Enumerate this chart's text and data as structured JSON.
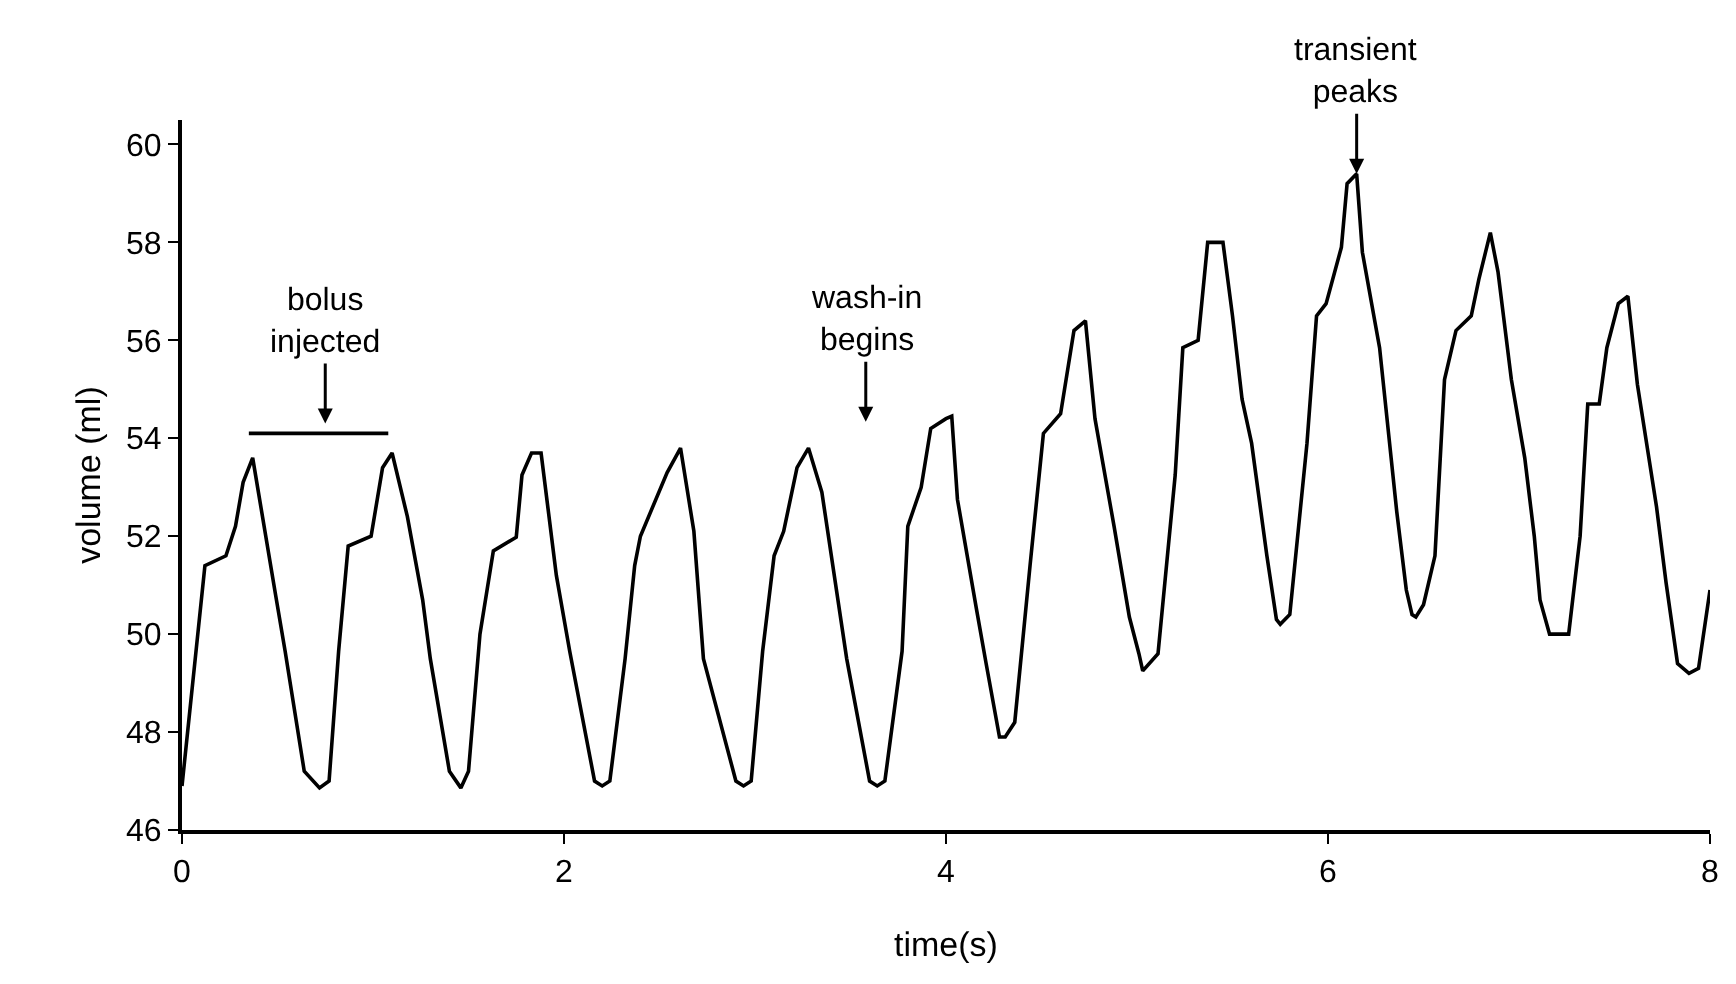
{
  "chart_data": {
    "type": "line",
    "xlabel": "time(s)",
    "ylabel": "volume (ml)",
    "xlim": [
      0,
      8
    ],
    "ylim": [
      46,
      60.5
    ],
    "xticks": [
      0,
      2,
      4,
      6,
      8
    ],
    "yticks": [
      46,
      48,
      50,
      52,
      54,
      56,
      58,
      60
    ],
    "marker": "none",
    "line_style": "solid",
    "series": [
      {
        "color": "#000000",
        "x": [
          0,
          0.12,
          0.23,
          0.28,
          0.32,
          0.37,
          0.4,
          0.49,
          0.54,
          0.64,
          0.72,
          0.77,
          0.82,
          0.87,
          0.99,
          1.05,
          1.1,
          1.18,
          1.26,
          1.3,
          1.4,
          1.46,
          1.5,
          1.56,
          1.63,
          1.75,
          1.78,
          1.83,
          1.88,
          1.96,
          2.03,
          2.16,
          2.2,
          2.24,
          2.32,
          2.37,
          2.4,
          2.54,
          2.61,
          2.68,
          2.73,
          2.9,
          2.94,
          2.98,
          3.04,
          3.1,
          3.15,
          3.22,
          3.28,
          3.35,
          3.48,
          3.6,
          3.64,
          3.68,
          3.77,
          3.8,
          3.87,
          3.92,
          4.0,
          4.03,
          4.06,
          4.16,
          4.21,
          4.28,
          4.31,
          4.36,
          4.44,
          4.51,
          4.6,
          4.67,
          4.73,
          4.78,
          4.88,
          4.96,
          5.01,
          5.03,
          5.11,
          5.2,
          5.24,
          5.32,
          5.37,
          5.45,
          5.5,
          5.55,
          5.6,
          5.68,
          5.73,
          5.75,
          5.8,
          5.89,
          5.94,
          5.99,
          6.07,
          6.1,
          6.15,
          6.18,
          6.27,
          6.36,
          6.41,
          6.44,
          6.46,
          6.5,
          6.56,
          6.61,
          6.67,
          6.75,
          6.79,
          6.85,
          6.89,
          6.96,
          7.03,
          7.08,
          7.11,
          7.16,
          7.26,
          7.32,
          7.36,
          7.42,
          7.46,
          7.52,
          7.57,
          7.62,
          7.72,
          7.77,
          7.83,
          7.89,
          7.94,
          8.0
        ],
        "values": [
          46.9,
          51.4,
          51.6,
          52.2,
          53.1,
          53.6,
          52.9,
          50.8,
          49.65,
          47.2,
          46.86,
          47.0,
          49.65,
          51.8,
          52.0,
          53.4,
          53.7,
          52.4,
          50.7,
          49.5,
          47.2,
          46.86,
          47.2,
          50.0,
          51.7,
          51.98,
          53.25,
          53.7,
          53.7,
          51.2,
          49.65,
          47.0,
          46.9,
          47.0,
          49.5,
          51.4,
          52.0,
          53.3,
          53.8,
          52.1,
          49.5,
          47.0,
          46.9,
          47.0,
          49.65,
          51.6,
          52.1,
          53.4,
          53.8,
          52.9,
          49.5,
          47.0,
          46.9,
          47.0,
          49.65,
          52.2,
          53.0,
          54.2,
          54.4,
          54.45,
          52.75,
          50.5,
          49.4,
          47.9,
          47.9,
          48.2,
          51.4,
          54.1,
          54.5,
          56.2,
          56.4,
          54.4,
          52.2,
          50.35,
          49.6,
          49.25,
          49.6,
          53.25,
          55.85,
          56.0,
          58.0,
          58.0,
          56.5,
          54.8,
          53.9,
          51.6,
          50.3,
          50.2,
          50.4,
          53.9,
          56.5,
          56.75,
          57.9,
          59.2,
          59.4,
          57.8,
          55.85,
          52.5,
          50.9,
          50.4,
          50.35,
          50.6,
          51.6,
          55.2,
          56.2,
          56.5,
          57.25,
          58.2,
          57.4,
          55.2,
          53.6,
          52.0,
          50.7,
          50.0,
          50.0,
          52.0,
          54.7,
          54.7,
          55.85,
          56.75,
          56.9,
          55.1,
          52.6,
          51.05,
          49.4,
          49.2,
          49.3,
          50.9
        ]
      },
      {
        "color": "#000000",
        "x": [
          0.35,
          1.08
        ],
        "values": [
          54.1,
          54.1
        ]
      }
    ],
    "annotations": [
      {
        "text": "bolus\ninjected",
        "x": 0.75,
        "y": 54.3
      },
      "wash-in\nbegins",
      {
        "text": "transient\npeaks",
        "x": 6.15,
        "y": 59.4
      }
    ]
  }
}
